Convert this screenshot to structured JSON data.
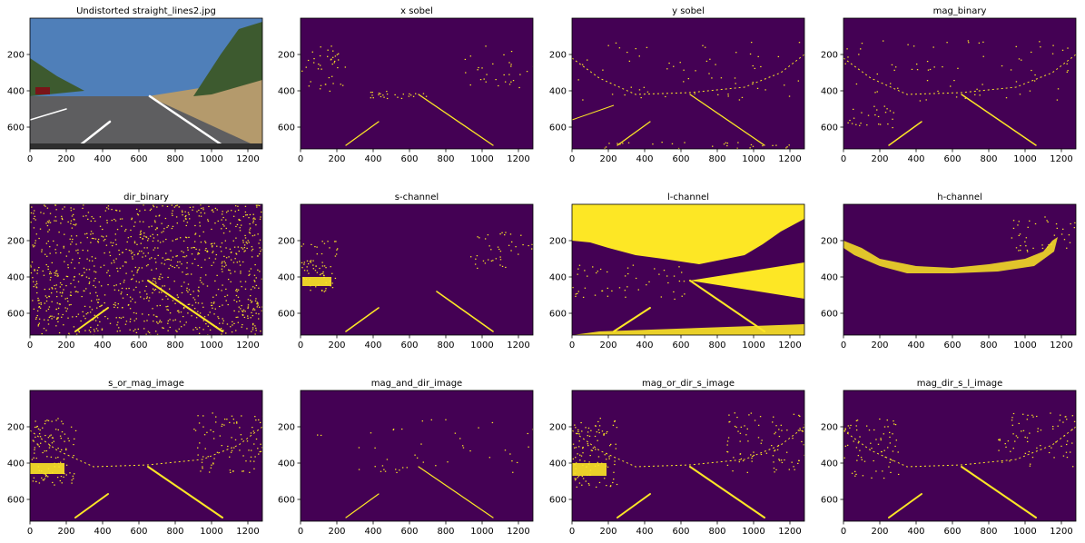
{
  "figure": {
    "panel_titles": [
      "Undistorted straight_lines2.jpg",
      "x sobel",
      "y sobel",
      "mag_binary",
      "dir_binary",
      "s-channel",
      "l-channel",
      "h-channel",
      "s_or_mag_image",
      "mag_and_dir_image",
      "mag_or_dir_s_image",
      "mag_dir_s_l_image"
    ],
    "colors": {
      "background": "#440154",
      "foreground": "#fde725",
      "sky": "#4f7fb9",
      "road": "#5e5e60",
      "field": "#b49a6c",
      "trees": "#3d5a2f"
    }
  },
  "chart_data": {
    "type": "image-grid",
    "rows": 3,
    "cols": 4,
    "xlim": [
      0,
      1280
    ],
    "ylim": [
      720,
      0
    ],
    "xticks": [
      0,
      200,
      400,
      600,
      800,
      1000,
      1200
    ],
    "yticks": [
      200,
      400,
      600
    ],
    "xtick_labels": [
      "0",
      "200",
      "400",
      "600",
      "800",
      "1000",
      "1200"
    ],
    "ytick_labels": [
      "200",
      "400",
      "600"
    ],
    "panels": [
      {
        "title": "Undistorted straight_lines2.jpg",
        "kind": "photo"
      },
      {
        "title": "x sobel",
        "kind": "binary"
      },
      {
        "title": "y sobel",
        "kind": "binary"
      },
      {
        "title": "mag_binary",
        "kind": "binary"
      },
      {
        "title": "dir_binary",
        "kind": "binary"
      },
      {
        "title": "s-channel",
        "kind": "binary"
      },
      {
        "title": "l-channel",
        "kind": "binary"
      },
      {
        "title": "h-channel",
        "kind": "binary"
      },
      {
        "title": "s_or_mag_image",
        "kind": "binary"
      },
      {
        "title": "mag_and_dir_image",
        "kind": "binary"
      },
      {
        "title": "mag_or_dir_s_image",
        "kind": "binary"
      },
      {
        "title": "mag_dir_s_l_image",
        "kind": "binary"
      }
    ]
  }
}
